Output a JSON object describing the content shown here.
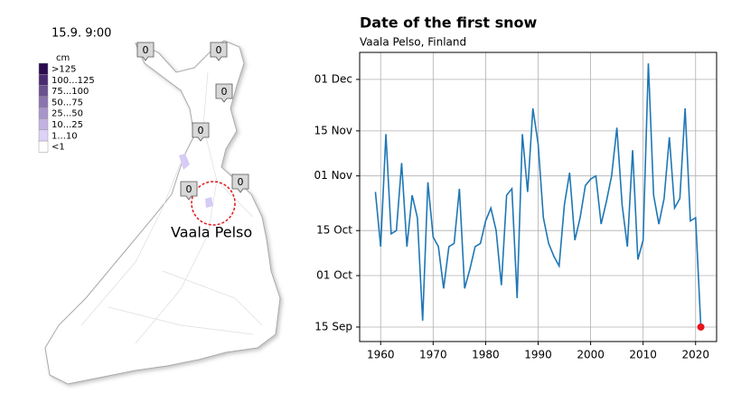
{
  "map": {
    "timestamp": "15.9. 9:00",
    "legend": {
      "unit": "cm",
      "items": [
        {
          "label": ">125",
          "color": "#2b0b4f"
        },
        {
          "label": "100...125",
          "color": "#4a2b72"
        },
        {
          "label": "75...100",
          "color": "#6a4f91"
        },
        {
          "label": "50...75",
          "color": "#8a73af"
        },
        {
          "label": "25...50",
          "color": "#a894ca"
        },
        {
          "label": "10...25",
          "color": "#c2b2e2"
        },
        {
          "label": "1...10",
          "color": "#ddd3f6"
        },
        {
          "label": "<1",
          "color": "#ffffff"
        }
      ]
    },
    "markers": [
      0,
      0,
      0,
      0,
      0,
      0
    ],
    "place": "Vaala Pelso"
  },
  "chart_data": {
    "type": "line",
    "title": "Date of the first snow",
    "subtitle": "Vaala Pelso, Finland",
    "x": [
      1959,
      1960,
      1961,
      1962,
      1963,
      1964,
      1965,
      1966,
      1967,
      1968,
      1969,
      1970,
      1971,
      1972,
      1973,
      1974,
      1975,
      1976,
      1977,
      1978,
      1979,
      1980,
      1981,
      1982,
      1983,
      1984,
      1985,
      1986,
      1987,
      1988,
      1989,
      1990,
      1991,
      1992,
      1993,
      1994,
      1995,
      1996,
      1997,
      1998,
      1999,
      2000,
      2001,
      2002,
      2003,
      2004,
      2005,
      2006,
      2007,
      2008,
      2009,
      2010,
      2011,
      2012,
      2013,
      2014,
      2015,
      2016,
      2017,
      2018,
      2019,
      2020,
      2021
    ],
    "values": [
      300,
      283,
      318,
      287,
      288,
      309,
      283,
      299,
      292,
      260,
      303,
      286,
      283,
      270,
      283,
      284,
      301,
      270,
      276,
      283,
      284,
      291,
      295,
      288,
      271,
      299,
      301,
      267,
      318,
      300,
      326,
      315,
      292,
      284,
      280,
      277,
      296,
      306,
      285,
      292,
      302,
      304,
      305,
      290,
      297,
      305,
      320,
      296,
      283,
      313,
      279,
      285,
      340,
      299,
      290,
      298,
      317,
      295,
      298,
      326,
      291,
      292,
      258
    ],
    "color": "#1f77b4",
    "last_marker_color": "#e8141c",
    "xlim": [
      1956,
      2024
    ],
    "xticks": [
      1960,
      1970,
      1980,
      1990,
      2000,
      2010,
      2020
    ],
    "ylim": [
      253.5,
      343.4
    ],
    "yticks": [
      {
        "value": 258,
        "label": "15 Sep"
      },
      {
        "value": 274,
        "label": "01 Oct"
      },
      {
        "value": 288,
        "label": "15 Oct"
      },
      {
        "value": 305,
        "label": "01 Nov"
      },
      {
        "value": 319,
        "label": "15 Nov"
      },
      {
        "value": 335,
        "label": "01 Dec"
      }
    ],
    "grid": true
  }
}
